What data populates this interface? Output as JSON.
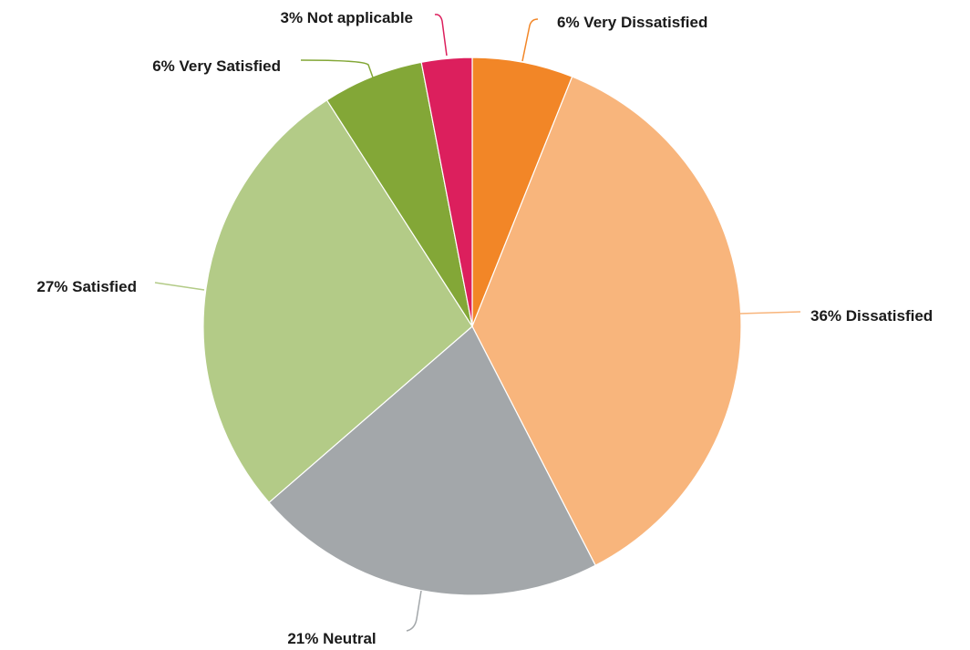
{
  "chart_data": {
    "type": "pie",
    "title": "",
    "slices": [
      {
        "label": "6% Very Dissatisfied",
        "category": "Very Dissatisfied",
        "value": 6,
        "color": "#f28627"
      },
      {
        "label": "36% Dissatisfied",
        "category": "Dissatisfied",
        "value": 36,
        "color": "#f8b57c"
      },
      {
        "label": "21% Neutral",
        "category": "Neutral",
        "value": 21,
        "color": "#a3a7aa"
      },
      {
        "label": "27% Satisfied",
        "category": "Satisfied",
        "value": 27,
        "color": "#b3cb87"
      },
      {
        "label": "6% Very Satisfied",
        "category": "Very Satisfied",
        "value": 6,
        "color": "#83a737"
      },
      {
        "label": "3% Not applicable",
        "category": "Not applicable",
        "value": 3,
        "color": "#dc1f5d"
      }
    ],
    "start_angle": "12 o'clock",
    "direction": "clockwise",
    "legend": "none",
    "labels": "outside with leader lines"
  }
}
